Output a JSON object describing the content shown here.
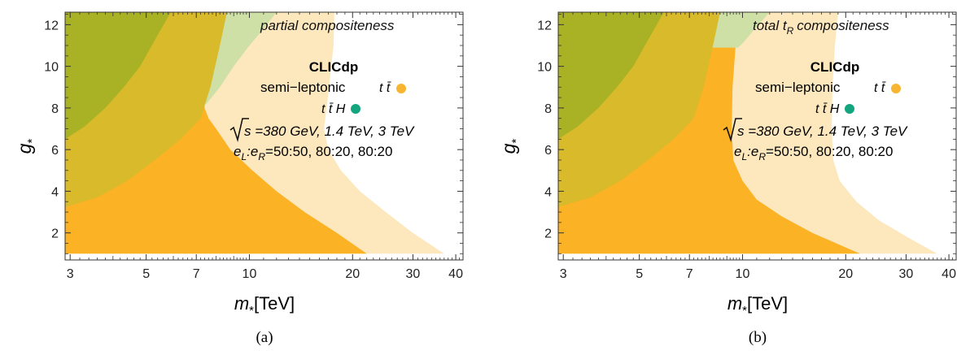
{
  "colors": {
    "orange_dark": "#fbb224",
    "orange_light": "#fde8be",
    "olive_dark": "#a9b225",
    "olive_mid": "#d8ba2a",
    "green_light": "#cfe0a7",
    "ttbar_dot": "#f7b531",
    "ttH_dot": "#13a57d"
  },
  "chart_data": [
    {
      "type": "area",
      "caption": "(a)",
      "annotation": "partial compositeness",
      "xlabel_main": "m",
      "xlabel_sub": "*",
      "xlabel_unit": "[TeV]",
      "ylabel_main": "g",
      "ylabel_sub": "*",
      "xscale": "log",
      "xlim": [
        2.9,
        42
      ],
      "ylim": [
        0.7,
        12.6
      ],
      "xticks": [
        3,
        5,
        7,
        10,
        20,
        30,
        40
      ],
      "xtick_labels": [
        "3",
        "5",
        "7",
        "10",
        "20",
        "30",
        "40"
      ],
      "yticks": [
        2,
        4,
        6,
        8,
        10,
        12
      ],
      "ytick_labels": [
        "2",
        "4",
        "6",
        "8",
        "10",
        "12"
      ],
      "legend": {
        "title": "CLICdp",
        "line1_prefix": "semi−leptonic",
        "line1_proc": "t t̄",
        "line2_proc": "t t̄ H",
        "energy_line": "s =380 GeV, 1.4 TeV, 3 TeV",
        "pol_line": "e",
        "pol_L": "L",
        "pol_sep": ":e",
        "pol_R": "R",
        "pol_values": "=50:50, 80:20, 80:20"
      },
      "regions": [
        {
          "name": "ttbar-3tev-light",
          "fill": "orange_light",
          "x": [
            17.7,
            17.6,
            17.2,
            16.8,
            16.5,
            17.0,
            18.5,
            21.0,
            25.0,
            30.0,
            37.0
          ],
          "y": [
            12.6,
            11.0,
            9.5,
            8.0,
            7.0,
            6.0,
            5.0,
            4.0,
            3.0,
            2.0,
            1.0
          ]
        },
        {
          "name": "ttbar-1.4tev-dark",
          "fill": "orange_dark",
          "x": [
            7.4,
            7.4,
            7.6,
            8.0,
            8.8,
            10.2,
            12.0,
            14.5,
            18.0,
            22.0
          ],
          "y": [
            12.6,
            8.0,
            7.5,
            7.0,
            6.0,
            5.0,
            4.0,
            3.0,
            2.0,
            1.0
          ]
        },
        {
          "name": "tth-green",
          "fill": "green_light",
          "x": [
            12.0,
            11.0,
            10.0,
            9.0,
            8.2,
            7.5,
            7.1
          ],
          "y": [
            12.6,
            11.8,
            11.0,
            10.0,
            9.0,
            8.2,
            8.0
          ]
        },
        {
          "name": "tth-olive-mid",
          "fill": "olive_mid",
          "x": [
            8.6,
            8.2,
            7.7,
            7.2,
            6.3,
            5.3,
            4.4,
            3.6,
            2.9
          ],
          "y": [
            12.6,
            11.0,
            9.0,
            7.5,
            6.5,
            5.5,
            4.5,
            3.7,
            3.25
          ]
        },
        {
          "name": "tth-olive-dark",
          "fill": "olive_dark",
          "x": [
            5.9,
            5.4,
            4.8,
            4.3,
            3.8,
            3.3,
            2.9
          ],
          "y": [
            12.6,
            11.5,
            10.0,
            9.0,
            8.0,
            7.1,
            6.5
          ]
        }
      ]
    },
    {
      "type": "area",
      "caption": "(b)",
      "annotation": "total t",
      "annotation_sub": "R",
      "annotation_tail": "compositeness",
      "xlabel_main": "m",
      "xlabel_sub": "*",
      "xlabel_unit": "[TeV]",
      "ylabel_main": "g",
      "ylabel_sub": "*",
      "xscale": "log",
      "xlim": [
        2.9,
        42
      ],
      "ylim": [
        0.7,
        12.6
      ],
      "xticks": [
        3,
        5,
        7,
        10,
        20,
        30,
        40
      ],
      "xtick_labels": [
        "3",
        "5",
        "7",
        "10",
        "20",
        "30",
        "40"
      ],
      "yticks": [
        2,
        4,
        6,
        8,
        10,
        12
      ],
      "ytick_labels": [
        "2",
        "4",
        "6",
        "8",
        "10",
        "12"
      ],
      "legend": {
        "title": "CLICdp",
        "line1_prefix": "semi−leptonic",
        "line1_proc": "t t̄",
        "line2_proc": "t t̄ H",
        "energy_line": "s =380 GeV, 1.4 TeV, 3 TeV",
        "pol_line": "e",
        "pol_L": "L",
        "pol_sep": ":e",
        "pol_R": "R",
        "pol_values": "=50:50, 80:20, 80:20"
      },
      "regions": [
        {
          "name": "ttbar-3tev-light",
          "fill": "orange_light",
          "x": [
            19.0,
            18.6,
            18.3,
            18.2,
            18.4,
            19.2,
            21.5,
            25.0,
            31.0,
            37.0
          ],
          "y": [
            12.6,
            11.0,
            9.0,
            7.0,
            5.5,
            4.5,
            3.5,
            2.6,
            1.7,
            1.0
          ]
        },
        {
          "name": "ttbar-1.4tev-dark",
          "fill": "orange_dark",
          "x": [
            9.85,
            9.55,
            9.35,
            9.3,
            9.4,
            10.0,
            11.0,
            13.0,
            16.0,
            22.0
          ],
          "y": [
            12.6,
            11.0,
            9.0,
            7.0,
            5.5,
            4.5,
            3.6,
            2.8,
            2.0,
            1.0
          ]
        },
        {
          "name": "tth-green",
          "fill": "green_light",
          "x": [
            12.0,
            11.0,
            10.0,
            9.7
          ],
          "y": [
            12.6,
            11.9,
            11.1,
            10.9
          ]
        },
        {
          "name": "tth-olive-mid",
          "fill": "olive_mid",
          "x": [
            8.6,
            8.2,
            7.7,
            7.2,
            6.3,
            5.3,
            4.4,
            3.6,
            2.9
          ],
          "y": [
            12.6,
            11.0,
            9.0,
            7.5,
            6.5,
            5.5,
            4.5,
            3.7,
            3.25
          ]
        },
        {
          "name": "tth-olive-dark",
          "fill": "olive_dark",
          "x": [
            5.9,
            5.4,
            4.8,
            4.3,
            3.8,
            3.3,
            2.9
          ],
          "y": [
            12.6,
            11.5,
            10.0,
            9.0,
            8.0,
            7.1,
            6.5
          ]
        }
      ]
    }
  ]
}
